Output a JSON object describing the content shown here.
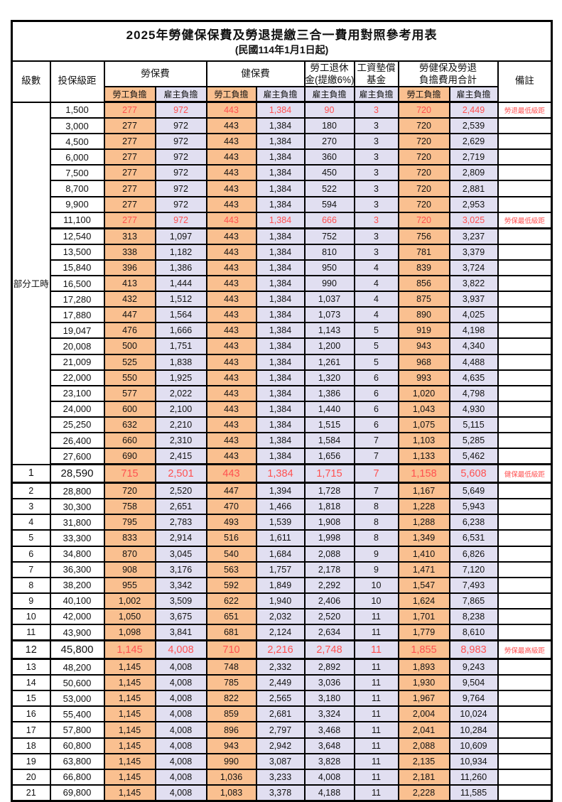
{
  "title": {
    "main": "2025年勞健保保費及勞退提繳三合一費用對照參考用表",
    "effective_date": "(民國114年1月1日起)"
  },
  "header": {
    "col_level": "級數",
    "col_salary": "投保級距",
    "group_labor": "勞保費",
    "group_health": "健保費",
    "group_pension_line1": "勞工退休",
    "group_pension_line2": "金(提繳6%)",
    "group_wage_fund_line1": "工資墊償",
    "group_wage_fund_line2": "基金",
    "group_total_line1": "勞健保及勞退",
    "group_total_line2": "負擔費用合計",
    "col_note": "備註",
    "sub_employee": "勞工負擔",
    "sub_employer": "雇主負擔"
  },
  "colors": {
    "employee_column": "#FAC090",
    "employer_column": "#E1DFF1",
    "highlight_text": "#ff5050",
    "border": "#000000"
  },
  "table": {
    "part_time_label": "部分工時",
    "part_time_rowspan": 23,
    "value_columns": [
      "勞保費-勞工負擔",
      "勞保費-雇主負擔",
      "健保費-勞工負擔",
      "健保費-雇主負擔",
      "勞工退休金(提繳6%)-雇主負擔",
      "工資墊償基金-雇主負擔",
      "合計-勞工負擔",
      "合計-雇主負擔"
    ],
    "rows": [
      {
        "level": "",
        "salary": "1,500",
        "values": [
          "277",
          "972",
          "443",
          "1,384",
          "90",
          "3",
          "720",
          "2,449"
        ],
        "note": "勞退最低級距",
        "highlight": true,
        "big": false,
        "thick_bottom": false
      },
      {
        "level": "",
        "salary": "3,000",
        "values": [
          "277",
          "972",
          "443",
          "1,384",
          "180",
          "3",
          "720",
          "2,539"
        ],
        "note": "",
        "highlight": false,
        "big": false,
        "thick_bottom": false
      },
      {
        "level": "",
        "salary": "4,500",
        "values": [
          "277",
          "972",
          "443",
          "1,384",
          "270",
          "3",
          "720",
          "2,629"
        ],
        "note": "",
        "highlight": false,
        "big": false,
        "thick_bottom": false
      },
      {
        "level": "",
        "salary": "6,000",
        "values": [
          "277",
          "972",
          "443",
          "1,384",
          "360",
          "3",
          "720",
          "2,719"
        ],
        "note": "",
        "highlight": false,
        "big": false,
        "thick_bottom": false
      },
      {
        "level": "",
        "salary": "7,500",
        "values": [
          "277",
          "972",
          "443",
          "1,384",
          "450",
          "3",
          "720",
          "2,809"
        ],
        "note": "",
        "highlight": false,
        "big": false,
        "thick_bottom": false
      },
      {
        "level": "",
        "salary": "8,700",
        "values": [
          "277",
          "972",
          "443",
          "1,384",
          "522",
          "3",
          "720",
          "2,881"
        ],
        "note": "",
        "highlight": false,
        "big": false,
        "thick_bottom": false
      },
      {
        "level": "",
        "salary": "9,900",
        "values": [
          "277",
          "972",
          "443",
          "1,384",
          "594",
          "3",
          "720",
          "2,953"
        ],
        "note": "",
        "highlight": false,
        "big": false,
        "thick_bottom": false
      },
      {
        "level": "",
        "salary": "11,100",
        "values": [
          "277",
          "972",
          "443",
          "1,384",
          "666",
          "3",
          "720",
          "3,025"
        ],
        "note": "勞保最低級距",
        "highlight": true,
        "big": false,
        "thick_bottom": true
      },
      {
        "level": "",
        "salary": "12,540",
        "values": [
          "313",
          "1,097",
          "443",
          "1,384",
          "752",
          "3",
          "756",
          "3,237"
        ],
        "note": "",
        "highlight": false,
        "big": false,
        "thick_bottom": false
      },
      {
        "level": "",
        "salary": "13,500",
        "values": [
          "338",
          "1,182",
          "443",
          "1,384",
          "810",
          "3",
          "781",
          "3,379"
        ],
        "note": "",
        "highlight": false,
        "big": false,
        "thick_bottom": false
      },
      {
        "level": "",
        "salary": "15,840",
        "values": [
          "396",
          "1,386",
          "443",
          "1,384",
          "950",
          "4",
          "839",
          "3,724"
        ],
        "note": "",
        "highlight": false,
        "big": false,
        "thick_bottom": false
      },
      {
        "level": "",
        "salary": "16,500",
        "values": [
          "413",
          "1,444",
          "443",
          "1,384",
          "990",
          "4",
          "856",
          "3,822"
        ],
        "note": "",
        "highlight": false,
        "big": false,
        "thick_bottom": false
      },
      {
        "level": "",
        "salary": "17,280",
        "values": [
          "432",
          "1,512",
          "443",
          "1,384",
          "1,037",
          "4",
          "875",
          "3,937"
        ],
        "note": "",
        "highlight": false,
        "big": false,
        "thick_bottom": false
      },
      {
        "level": "",
        "salary": "17,880",
        "values": [
          "447",
          "1,564",
          "443",
          "1,384",
          "1,073",
          "4",
          "890",
          "4,025"
        ],
        "note": "",
        "highlight": false,
        "big": false,
        "thick_bottom": false
      },
      {
        "level": "",
        "salary": "19,047",
        "values": [
          "476",
          "1,666",
          "443",
          "1,384",
          "1,143",
          "5",
          "919",
          "4,198"
        ],
        "note": "",
        "highlight": false,
        "big": false,
        "thick_bottom": false
      },
      {
        "level": "",
        "salary": "20,008",
        "values": [
          "500",
          "1,751",
          "443",
          "1,384",
          "1,200",
          "5",
          "943",
          "4,340"
        ],
        "note": "",
        "highlight": false,
        "big": false,
        "thick_bottom": false
      },
      {
        "level": "",
        "salary": "21,009",
        "values": [
          "525",
          "1,838",
          "443",
          "1,384",
          "1,261",
          "5",
          "968",
          "4,488"
        ],
        "note": "",
        "highlight": false,
        "big": false,
        "thick_bottom": false
      },
      {
        "level": "",
        "salary": "22,000",
        "values": [
          "550",
          "1,925",
          "443",
          "1,384",
          "1,320",
          "6",
          "993",
          "4,635"
        ],
        "note": "",
        "highlight": false,
        "big": false,
        "thick_bottom": false
      },
      {
        "level": "",
        "salary": "23,100",
        "values": [
          "577",
          "2,022",
          "443",
          "1,384",
          "1,386",
          "6",
          "1,020",
          "4,798"
        ],
        "note": "",
        "highlight": false,
        "big": false,
        "thick_bottom": false
      },
      {
        "level": "",
        "salary": "24,000",
        "values": [
          "600",
          "2,100",
          "443",
          "1,384",
          "1,440",
          "6",
          "1,043",
          "4,930"
        ],
        "note": "",
        "highlight": false,
        "big": false,
        "thick_bottom": false
      },
      {
        "level": "",
        "salary": "25,250",
        "values": [
          "632",
          "2,210",
          "443",
          "1,384",
          "1,515",
          "6",
          "1,075",
          "5,115"
        ],
        "note": "",
        "highlight": false,
        "big": false,
        "thick_bottom": false
      },
      {
        "level": "",
        "salary": "26,400",
        "values": [
          "660",
          "2,310",
          "443",
          "1,384",
          "1,584",
          "7",
          "1,103",
          "5,285"
        ],
        "note": "",
        "highlight": false,
        "big": false,
        "thick_bottom": false
      },
      {
        "level": "",
        "salary": "27,600",
        "values": [
          "690",
          "2,415",
          "443",
          "1,384",
          "1,656",
          "7",
          "1,133",
          "5,462"
        ],
        "note": "",
        "highlight": false,
        "big": false,
        "thick_bottom": true
      },
      {
        "level": "1",
        "salary": "28,590",
        "values": [
          "715",
          "2,501",
          "443",
          "1,384",
          "1,715",
          "7",
          "1,158",
          "5,608"
        ],
        "note": "健保最低級距",
        "highlight": true,
        "big": true,
        "thick_bottom": true
      },
      {
        "level": "2",
        "salary": "28,800",
        "values": [
          "720",
          "2,520",
          "447",
          "1,394",
          "1,728",
          "7",
          "1,167",
          "5,649"
        ],
        "note": "",
        "highlight": false,
        "big": false,
        "thick_bottom": false
      },
      {
        "level": "3",
        "salary": "30,300",
        "values": [
          "758",
          "2,651",
          "470",
          "1,466",
          "1,818",
          "8",
          "1,228",
          "5,943"
        ],
        "note": "",
        "highlight": false,
        "big": false,
        "thick_bottom": false
      },
      {
        "level": "4",
        "salary": "31,800",
        "values": [
          "795",
          "2,783",
          "493",
          "1,539",
          "1,908",
          "8",
          "1,288",
          "6,238"
        ],
        "note": "",
        "highlight": false,
        "big": false,
        "thick_bottom": false
      },
      {
        "level": "5",
        "salary": "33,300",
        "values": [
          "833",
          "2,914",
          "516",
          "1,611",
          "1,998",
          "8",
          "1,349",
          "6,531"
        ],
        "note": "",
        "highlight": false,
        "big": false,
        "thick_bottom": false
      },
      {
        "level": "6",
        "salary": "34,800",
        "values": [
          "870",
          "3,045",
          "540",
          "1,684",
          "2,088",
          "9",
          "1,410",
          "6,826"
        ],
        "note": "",
        "highlight": false,
        "big": false,
        "thick_bottom": false
      },
      {
        "level": "7",
        "salary": "36,300",
        "values": [
          "908",
          "3,176",
          "563",
          "1,757",
          "2,178",
          "9",
          "1,471",
          "7,120"
        ],
        "note": "",
        "highlight": false,
        "big": false,
        "thick_bottom": false
      },
      {
        "level": "8",
        "salary": "38,200",
        "values": [
          "955",
          "3,342",
          "592",
          "1,849",
          "2,292",
          "10",
          "1,547",
          "7,493"
        ],
        "note": "",
        "highlight": false,
        "big": false,
        "thick_bottom": false
      },
      {
        "level": "9",
        "salary": "40,100",
        "values": [
          "1,002",
          "3,509",
          "622",
          "1,940",
          "2,406",
          "10",
          "1,624",
          "7,865"
        ],
        "note": "",
        "highlight": false,
        "big": false,
        "thick_bottom": false
      },
      {
        "level": "10",
        "salary": "42,000",
        "values": [
          "1,050",
          "3,675",
          "651",
          "2,032",
          "2,520",
          "11",
          "1,701",
          "8,238"
        ],
        "note": "",
        "highlight": false,
        "big": false,
        "thick_bottom": false
      },
      {
        "level": "11",
        "salary": "43,900",
        "values": [
          "1,098",
          "3,841",
          "681",
          "2,124",
          "2,634",
          "11",
          "1,779",
          "8,610"
        ],
        "note": "",
        "highlight": false,
        "big": false,
        "thick_bottom": true
      },
      {
        "level": "12",
        "salary": "45,800",
        "values": [
          "1,145",
          "4,008",
          "710",
          "2,216",
          "2,748",
          "11",
          "1,855",
          "8,983"
        ],
        "note": "勞保最高級距",
        "highlight": true,
        "big": true,
        "thick_bottom": true
      },
      {
        "level": "13",
        "salary": "48,200",
        "values": [
          "1,145",
          "4,008",
          "748",
          "2,332",
          "2,892",
          "11",
          "1,893",
          "9,243"
        ],
        "note": "",
        "highlight": false,
        "big": false,
        "thick_bottom": false
      },
      {
        "level": "14",
        "salary": "50,600",
        "values": [
          "1,145",
          "4,008",
          "785",
          "2,449",
          "3,036",
          "11",
          "1,930",
          "9,504"
        ],
        "note": "",
        "highlight": false,
        "big": false,
        "thick_bottom": false
      },
      {
        "level": "15",
        "salary": "53,000",
        "values": [
          "1,145",
          "4,008",
          "822",
          "2,565",
          "3,180",
          "11",
          "1,967",
          "9,764"
        ],
        "note": "",
        "highlight": false,
        "big": false,
        "thick_bottom": false
      },
      {
        "level": "16",
        "salary": "55,400",
        "values": [
          "1,145",
          "4,008",
          "859",
          "2,681",
          "3,324",
          "11",
          "2,004",
          "10,024"
        ],
        "note": "",
        "highlight": false,
        "big": false,
        "thick_bottom": false
      },
      {
        "level": "17",
        "salary": "57,800",
        "values": [
          "1,145",
          "4,008",
          "896",
          "2,797",
          "3,468",
          "11",
          "2,041",
          "10,284"
        ],
        "note": "",
        "highlight": false,
        "big": false,
        "thick_bottom": false
      },
      {
        "level": "18",
        "salary": "60,800",
        "values": [
          "1,145",
          "4,008",
          "943",
          "2,942",
          "3,648",
          "11",
          "2,088",
          "10,609"
        ],
        "note": "",
        "highlight": false,
        "big": false,
        "thick_bottom": false
      },
      {
        "level": "19",
        "salary": "63,800",
        "values": [
          "1,145",
          "4,008",
          "990",
          "3,087",
          "3,828",
          "11",
          "2,135",
          "10,934"
        ],
        "note": "",
        "highlight": false,
        "big": false,
        "thick_bottom": false
      },
      {
        "level": "20",
        "salary": "66,800",
        "values": [
          "1,145",
          "4,008",
          "1,036",
          "3,233",
          "4,008",
          "11",
          "2,181",
          "11,260"
        ],
        "note": "",
        "highlight": false,
        "big": false,
        "thick_bottom": false
      },
      {
        "level": "21",
        "salary": "69,800",
        "values": [
          "1,145",
          "4,008",
          "1,083",
          "3,378",
          "4,188",
          "11",
          "2,228",
          "11,585"
        ],
        "note": "",
        "highlight": false,
        "big": false,
        "thick_bottom": false
      }
    ]
  }
}
